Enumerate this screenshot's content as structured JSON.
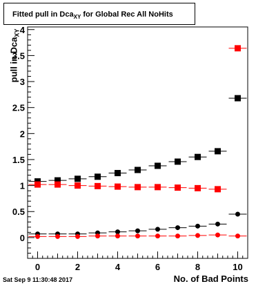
{
  "title_prefix": "Fitted pull in Dca",
  "title_sub": "XY",
  "title_suffix": " for Global Rec All NoHits",
  "ylabel_prefix": "pull in Dca",
  "ylabel_sub": "XY",
  "xlabel": "No. of Bad Points",
  "timestamp": "Sat Sep  9 11:30:48 2017",
  "colors": {
    "black": "#000000",
    "red": "#ff0000"
  },
  "chart_data": {
    "type": "scatter",
    "xlim": [
      -0.5,
      10.5
    ],
    "ylim": [
      -0.4,
      4.05
    ],
    "x_ticks": [
      0,
      2,
      4,
      6,
      8,
      10
    ],
    "y_ticks": [
      0,
      0.5,
      1,
      1.5,
      2,
      2.5,
      3,
      3.5,
      4
    ],
    "y_tick_labels": [
      "0",
      "0.5",
      "1",
      "1.5",
      "2",
      "2.5",
      "3",
      "3.5",
      "4"
    ],
    "series": [
      {
        "marker": "square",
        "color": "#000000",
        "x": [
          0,
          1,
          2,
          3,
          4,
          5,
          6,
          7,
          8,
          9,
          10
        ],
        "y": [
          1.08,
          1.1,
          1.13,
          1.17,
          1.24,
          1.3,
          1.38,
          1.46,
          1.55,
          1.66,
          2.68
        ]
      },
      {
        "marker": "square",
        "color": "#ff0000",
        "x": [
          0,
          1,
          2,
          3,
          4,
          5,
          6,
          7,
          8,
          9,
          10
        ],
        "y": [
          1.02,
          1.02,
          1.0,
          0.99,
          0.98,
          0.97,
          0.97,
          0.96,
          0.95,
          0.93,
          3.64
        ]
      },
      {
        "marker": "circle",
        "color": "#000000",
        "x": [
          0,
          1,
          2,
          3,
          4,
          5,
          6,
          7,
          8,
          9,
          10
        ],
        "y": [
          0.07,
          0.07,
          0.07,
          0.09,
          0.11,
          0.13,
          0.16,
          0.19,
          0.22,
          0.26,
          0.45
        ]
      },
      {
        "marker": "circle",
        "color": "#ff0000",
        "x": [
          0,
          1,
          2,
          3,
          4,
          5,
          6,
          7,
          8,
          9,
          10
        ],
        "y": [
          0.02,
          0.02,
          0.02,
          0.03,
          0.03,
          0.03,
          0.03,
          0.03,
          0.04,
          0.05,
          0.03
        ]
      }
    ]
  }
}
